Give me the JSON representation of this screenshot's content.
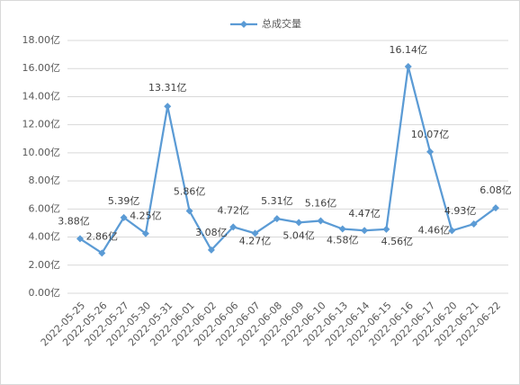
{
  "chart_data": {
    "type": "line",
    "categories": [
      "2022-05-25",
      "2022-05-26",
      "2022-05-27",
      "2022-05-30",
      "2022-05-31",
      "2022-06-01",
      "2022-06-02",
      "2022-06-06",
      "2022-06-07",
      "2022-06-08",
      "2022-06-09",
      "2022-06-10",
      "2022-06-13",
      "2022-06-14",
      "2022-06-15",
      "2022-06-16",
      "2022-06-17",
      "2022-06-20",
      "2022-06-21",
      "2022-06-22"
    ],
    "series": [
      {
        "name": "总成交量",
        "color": "#5b9bd5",
        "values": [
          3.88,
          2.86,
          5.39,
          4.25,
          13.31,
          5.86,
          3.08,
          4.72,
          4.27,
          5.31,
          5.04,
          5.16,
          4.58,
          4.47,
          4.56,
          16.14,
          10.07,
          4.46,
          4.93,
          6.08
        ],
        "value_labels": [
          "3.88亿",
          "2.86亿",
          "5.39亿",
          "4.25亿",
          "13.31亿",
          "5.86亿",
          "3.08亿",
          "4.72亿",
          "4.27亿",
          "5.31亿",
          "5.04亿",
          "5.16亿",
          "4.58亿",
          "4.47亿",
          "4.56亿",
          "16.14亿",
          "10.07亿",
          "4.46亿",
          "4.93亿",
          "6.08亿"
        ]
      }
    ],
    "ylim": [
      0,
      18
    ],
    "yticks": [
      {
        "value": 0,
        "label": "0.00亿"
      },
      {
        "value": 2,
        "label": "2.00亿"
      },
      {
        "value": 4,
        "label": "4.00亿"
      },
      {
        "value": 6,
        "label": "6.00亿"
      },
      {
        "value": 8,
        "label": "8.00亿"
      },
      {
        "value": 10,
        "label": "10.00亿"
      },
      {
        "value": 12,
        "label": "12.00亿"
      },
      {
        "value": 14,
        "label": "14.00亿"
      },
      {
        "value": 16,
        "label": "16.00亿"
      },
      {
        "value": 18,
        "label": "18.00亿"
      }
    ],
    "grid": true,
    "legend": "top"
  }
}
